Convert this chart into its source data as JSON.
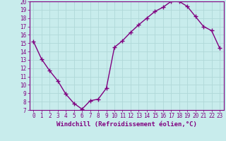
{
  "x": [
    0,
    1,
    2,
    3,
    4,
    5,
    6,
    7,
    8,
    9,
    10,
    11,
    12,
    13,
    14,
    15,
    16,
    17,
    18,
    19,
    20,
    21,
    22,
    23
  ],
  "y": [
    15.2,
    13.1,
    11.7,
    10.5,
    8.9,
    7.8,
    7.1,
    8.1,
    8.3,
    9.6,
    14.5,
    15.3,
    16.3,
    17.2,
    18.0,
    18.8,
    19.3,
    20.0,
    20.0,
    19.4,
    18.2,
    17.0,
    16.5,
    14.4
  ],
  "line_color": "#800080",
  "marker": "+",
  "marker_size": 4,
  "linewidth": 1.0,
  "xlabel": "Windchill (Refroidissement éolien,°C)",
  "xlabel_fontsize": 6.5,
  "ylim": [
    7,
    20
  ],
  "xlim": [
    -0.5,
    23.5
  ],
  "yticks": [
    7,
    8,
    9,
    10,
    11,
    12,
    13,
    14,
    15,
    16,
    17,
    18,
    19,
    20
  ],
  "xticks": [
    0,
    1,
    2,
    3,
    4,
    5,
    6,
    7,
    8,
    9,
    10,
    11,
    12,
    13,
    14,
    15,
    16,
    17,
    18,
    19,
    20,
    21,
    22,
    23
  ],
  "bg_color": "#c8ecec",
  "grid_color": "#b0d8d8",
  "tick_fontsize": 5.5,
  "axis_color": "#800080",
  "spine_color": "#800080"
}
